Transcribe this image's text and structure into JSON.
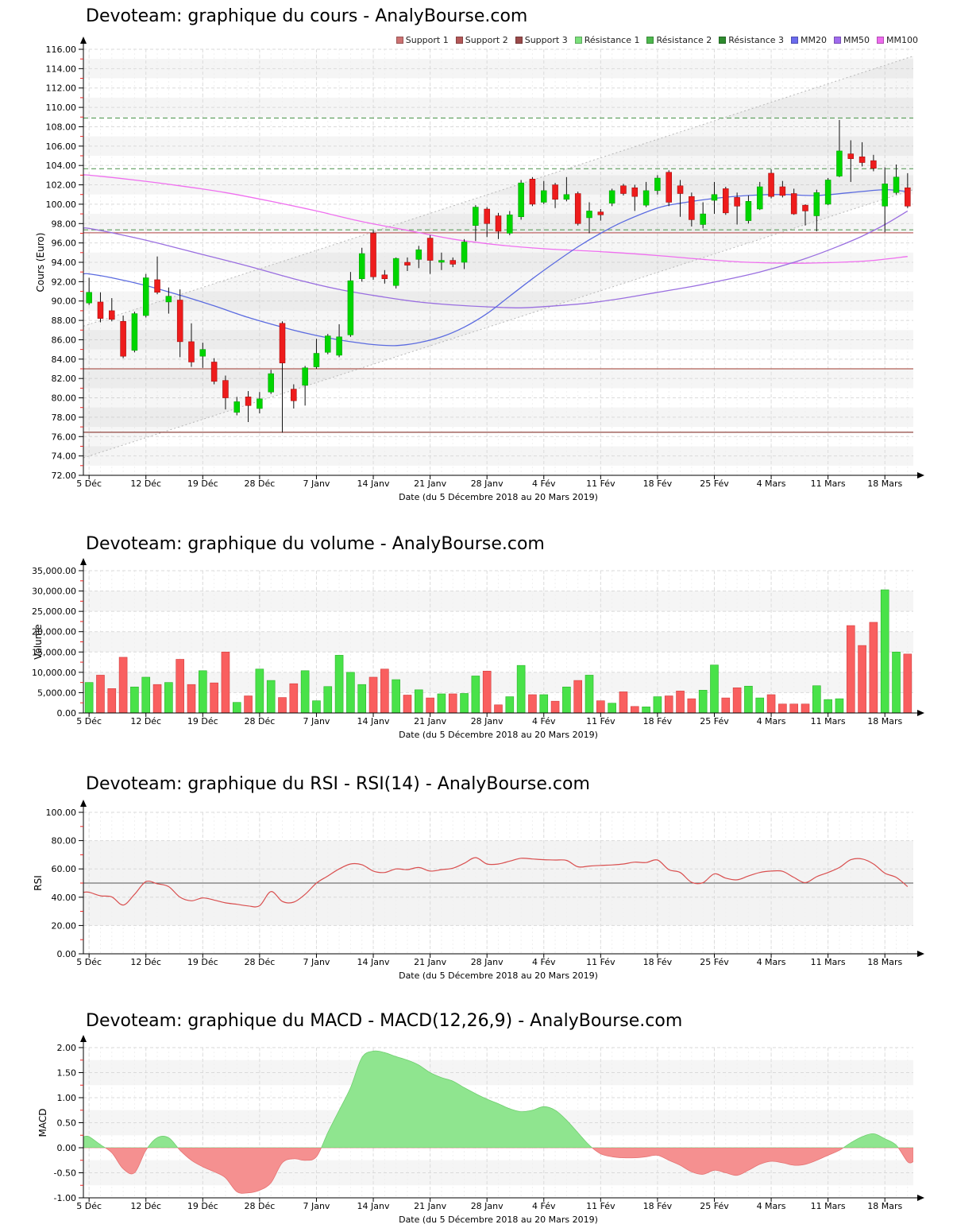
{
  "page": {
    "background": "#ffffff",
    "site": "AnalyBourse.com",
    "instrument": "Devoteam"
  },
  "x_axis": {
    "title": "Date (du 5 Décembre 2018 au 20 Mars 2019)",
    "tick_labels": [
      "5 Déc",
      "12 Déc",
      "19 Déc",
      "28 Déc",
      "7 Janv",
      "14 Janv",
      "21 Janv",
      "28 Janv",
      "4 Fév",
      "11 Fév",
      "18 Fév",
      "25 Fév",
      "4 Mars",
      "11 Mars",
      "18 Mars"
    ],
    "tick_indices": [
      0,
      5,
      10,
      15,
      20,
      25,
      30,
      35,
      40,
      45,
      50,
      55,
      60,
      65,
      70
    ],
    "dates": [
      "5 Déc",
      "6 Déc",
      "7 Déc",
      "10 Déc",
      "11 Déc",
      "12 Déc",
      "13 Déc",
      "14 Déc",
      "17 Déc",
      "18 Déc",
      "19 Déc",
      "20 Déc",
      "21 Déc",
      "24 Déc",
      "27 Déc",
      "28 Déc",
      "31 Déc",
      "2 Janv",
      "3 Janv",
      "4 Janv",
      "7 Janv",
      "8 Janv",
      "9 Janv",
      "10 Janv",
      "11 Janv",
      "14 Janv",
      "15 Janv",
      "16 Janv",
      "17 Janv",
      "18 Janv",
      "21 Janv",
      "22 Janv",
      "23 Janv",
      "24 Janv",
      "25 Janv",
      "28 Janv",
      "29 Janv",
      "30 Janv",
      "31 Janv",
      "1 Fév",
      "4 Fév",
      "5 Fév",
      "6 Fév",
      "7 Fév",
      "8 Fév",
      "11 Fév",
      "12 Fév",
      "13 Fév",
      "14 Fév",
      "15 Fév",
      "18 Fév",
      "19 Fév",
      "20 Fév",
      "21 Fév",
      "22 Fév",
      "25 Fév",
      "26 Fév",
      "27 Fév",
      "28 Fév",
      "1 Mars",
      "4 Mars",
      "5 Mars",
      "6 Mars",
      "7 Mars",
      "8 Mars",
      "11 Mars",
      "12 Mars",
      "13 Mars",
      "14 Mars",
      "15 Mars",
      "18 Mars",
      "19 Mars",
      "20 Mars"
    ]
  },
  "chart_data": [
    {
      "id": "price",
      "type": "candlestick",
      "title": "Devoteam: graphique du cours - AnalyBourse.com",
      "ylabel": "Cours (Euro)",
      "ylim": [
        72,
        116
      ],
      "ystep": 2,
      "yminor": 1,
      "y_tick_labels": [
        "116.00",
        "114.00",
        "112.00",
        "110.00",
        "108.00",
        "106.00",
        "104.00",
        "102.00",
        "100.00",
        "98.00",
        "96.00",
        "94.00",
        "92.00",
        "90.00",
        "88.00",
        "86.00",
        "84.00",
        "82.00",
        "80.00",
        "78.00",
        "76.00",
        "74.00",
        "72.00"
      ],
      "legend": [
        {
          "label": "Support 1",
          "color": "#cc7272"
        },
        {
          "label": "Support 2",
          "color": "#b45858"
        },
        {
          "label": "Support 3",
          "color": "#9a4a4a"
        },
        {
          "label": "Résistance 1",
          "color": "#7be07b"
        },
        {
          "label": "Résistance 2",
          "color": "#4db84d"
        },
        {
          "label": "Résistance 3",
          "color": "#2e8b2e"
        },
        {
          "label": "MM20",
          "color": "#6b6bee"
        },
        {
          "label": "MM50",
          "color": "#a06bee"
        },
        {
          "label": "MM100",
          "color": "#ee6bee"
        }
      ],
      "supports": [
        {
          "label": "Support 1",
          "value": 97.05,
          "color": "#c06868"
        },
        {
          "label": "Support 2",
          "value": 83.0,
          "color": "#b06058"
        },
        {
          "label": "Support 3",
          "value": 76.45,
          "color": "#9a5650"
        }
      ],
      "resistances": [
        {
          "label": "Résistance 1",
          "value": 97.35,
          "color": "#5f9f5f"
        },
        {
          "label": "Résistance 2",
          "value": 103.66,
          "color": "#5f9f5f"
        },
        {
          "label": "Résistance 3",
          "value": 108.9,
          "color": "#5f9f5f"
        }
      ],
      "channel": {
        "upper": [
          87.4,
          115.3
        ],
        "lower": [
          73.8,
          101.5
        ],
        "line_color": "#b8b8b8",
        "fill": "rgba(140,140,140,0.08)"
      },
      "mm20": {
        "label": "MM20",
        "color": "#5b6be0",
        "points": [
          [
            0,
            92.8
          ],
          [
            2,
            92.4
          ],
          [
            5,
            91.6
          ],
          [
            8,
            90.6
          ],
          [
            11,
            89.5
          ],
          [
            14,
            88.3
          ],
          [
            17,
            87.3
          ],
          [
            19,
            86.7
          ],
          [
            21,
            86.2
          ],
          [
            23,
            85.8
          ],
          [
            25,
            85.5
          ],
          [
            27,
            85.4
          ],
          [
            29,
            85.7
          ],
          [
            31,
            86.3
          ],
          [
            33,
            87.3
          ],
          [
            35,
            88.7
          ],
          [
            37,
            90.5
          ],
          [
            39,
            92.3
          ],
          [
            41,
            94.0
          ],
          [
            43,
            95.6
          ],
          [
            45,
            97.0
          ],
          [
            47,
            98.2
          ],
          [
            50,
            99.6
          ],
          [
            52,
            100.1
          ],
          [
            55,
            100.6
          ],
          [
            58,
            100.9
          ],
          [
            61,
            101.0
          ],
          [
            64,
            100.9
          ],
          [
            67,
            101.2
          ],
          [
            70,
            101.5
          ],
          [
            72,
            101.3
          ]
        ]
      },
      "mm50": {
        "label": "MM50",
        "color": "#9a6fe0",
        "points": [
          [
            0,
            97.5
          ],
          [
            3,
            96.8
          ],
          [
            6,
            96.0
          ],
          [
            10,
            94.8
          ],
          [
            14,
            93.6
          ],
          [
            18,
            92.3
          ],
          [
            22,
            91.2
          ],
          [
            26,
            90.4
          ],
          [
            29,
            89.9
          ],
          [
            32,
            89.6
          ],
          [
            35,
            89.4
          ],
          [
            38,
            89.3
          ],
          [
            41,
            89.5
          ],
          [
            44,
            89.8
          ],
          [
            47,
            90.3
          ],
          [
            50,
            90.9
          ],
          [
            53,
            91.5
          ],
          [
            56,
            92.2
          ],
          [
            59,
            93.0
          ],
          [
            62,
            94.0
          ],
          [
            64,
            94.8
          ],
          [
            66,
            95.7
          ],
          [
            68,
            96.7
          ],
          [
            70,
            97.9
          ],
          [
            72,
            99.3
          ]
        ]
      },
      "mm100": {
        "label": "MM100",
        "color": "#ef6fef",
        "points": [
          [
            0,
            103.0
          ],
          [
            4,
            102.5
          ],
          [
            8,
            101.9
          ],
          [
            12,
            101.2
          ],
          [
            16,
            100.3
          ],
          [
            20,
            99.3
          ],
          [
            24,
            98.2
          ],
          [
            28,
            97.3
          ],
          [
            32,
            96.4
          ],
          [
            36,
            95.8
          ],
          [
            40,
            95.4
          ],
          [
            45,
            95.1
          ],
          [
            50,
            94.7
          ],
          [
            54,
            94.3
          ],
          [
            58,
            94.0
          ],
          [
            62,
            93.9
          ],
          [
            66,
            94.0
          ],
          [
            69,
            94.2
          ],
          [
            72,
            94.6
          ]
        ]
      },
      "up_color": "#00d500",
      "down_color": "#ee1c1c",
      "wick_color": "#111111",
      "candles": [
        [
          89.8,
          92.4,
          89.6,
          90.9
        ],
        [
          89.9,
          90.9,
          87.8,
          88.2
        ],
        [
          89.0,
          90.3,
          87.9,
          88.1
        ],
        [
          87.9,
          88.5,
          84.1,
          84.3
        ],
        [
          84.9,
          88.9,
          84.7,
          88.7
        ],
        [
          88.5,
          92.8,
          88.3,
          92.4
        ],
        [
          92.2,
          94.6,
          90.7,
          90.9
        ],
        [
          89.9,
          91.4,
          88.7,
          90.5
        ],
        [
          90.1,
          91.2,
          84.2,
          85.8
        ],
        [
          85.8,
          87.7,
          83.2,
          83.7
        ],
        [
          84.3,
          85.7,
          83.1,
          85.0
        ],
        [
          83.7,
          84.1,
          81.4,
          81.7
        ],
        [
          81.8,
          82.3,
          78.8,
          80.0
        ],
        [
          78.5,
          80.1,
          78.2,
          79.6
        ],
        [
          80.1,
          80.7,
          77.5,
          79.2
        ],
        [
          78.9,
          80.6,
          78.4,
          79.9
        ],
        [
          80.6,
          82.9,
          80.4,
          82.5
        ],
        [
          87.7,
          87.9,
          76.4,
          83.6
        ],
        [
          80.9,
          81.4,
          78.9,
          79.7
        ],
        [
          81.3,
          83.3,
          79.2,
          83.1
        ],
        [
          83.2,
          86.1,
          83.0,
          84.6
        ],
        [
          84.7,
          86.6,
          84.5,
          86.4
        ],
        [
          84.4,
          87.6,
          84.2,
          86.3
        ],
        [
          86.5,
          93.0,
          86.3,
          92.1
        ],
        [
          92.3,
          95.5,
          92.0,
          94.9
        ],
        [
          97.0,
          97.3,
          92.2,
          92.5
        ],
        [
          92.7,
          93.2,
          91.8,
          92.3
        ],
        [
          91.6,
          94.5,
          91.3,
          94.4
        ],
        [
          94.0,
          94.5,
          93.1,
          93.7
        ],
        [
          94.3,
          95.7,
          93.4,
          95.3
        ],
        [
          96.5,
          96.8,
          92.8,
          94.2
        ],
        [
          94.0,
          95.0,
          93.2,
          94.2
        ],
        [
          94.2,
          94.5,
          93.5,
          93.8
        ],
        [
          94.0,
          96.4,
          93.3,
          96.1
        ],
        [
          97.8,
          99.9,
          96.2,
          99.7
        ],
        [
          99.5,
          99.7,
          96.6,
          98.0
        ],
        [
          98.8,
          99.1,
          96.4,
          97.2
        ],
        [
          97.0,
          99.3,
          96.8,
          98.9
        ],
        [
          98.7,
          102.5,
          98.4,
          102.2
        ],
        [
          102.6,
          102.8,
          99.8,
          100.0
        ],
        [
          100.2,
          102.4,
          100.0,
          101.4
        ],
        [
          102.0,
          102.2,
          99.6,
          100.5
        ],
        [
          100.5,
          102.8,
          100.3,
          101.0
        ],
        [
          101.1,
          101.3,
          97.8,
          98.0
        ],
        [
          98.6,
          100.2,
          97.0,
          99.3
        ],
        [
          99.2,
          99.5,
          98.3,
          98.9
        ],
        [
          100.1,
          101.6,
          99.8,
          101.4
        ],
        [
          101.9,
          102.1,
          100.9,
          101.1
        ],
        [
          101.7,
          102.0,
          99.3,
          100.8
        ],
        [
          99.9,
          102.3,
          99.7,
          101.4
        ],
        [
          101.4,
          103.0,
          101.0,
          102.7
        ],
        [
          103.3,
          103.5,
          99.8,
          100.2
        ],
        [
          101.9,
          102.5,
          98.7,
          101.1
        ],
        [
          100.8,
          101.2,
          97.7,
          98.4
        ],
        [
          97.9,
          100.2,
          97.5,
          99.0
        ],
        [
          100.4,
          102.3,
          99.0,
          101.0
        ],
        [
          101.6,
          101.8,
          98.9,
          99.1
        ],
        [
          100.7,
          101.2,
          97.9,
          99.8
        ],
        [
          98.3,
          100.9,
          98.0,
          100.3
        ],
        [
          99.5,
          102.3,
          99.4,
          101.8
        ],
        [
          103.2,
          103.6,
          100.6,
          100.8
        ],
        [
          101.8,
          102.4,
          100.7,
          100.9
        ],
        [
          101.1,
          101.6,
          98.9,
          99.0
        ],
        [
          99.9,
          100.0,
          97.8,
          99.3
        ],
        [
          98.8,
          101.5,
          97.2,
          101.2
        ],
        [
          100.0,
          102.7,
          99.9,
          102.5
        ],
        [
          102.9,
          108.7,
          102.8,
          105.5
        ],
        [
          105.2,
          106.6,
          102.3,
          104.7
        ],
        [
          104.9,
          106.4,
          103.9,
          104.3
        ],
        [
          104.5,
          105.1,
          103.4,
          103.7
        ],
        [
          99.8,
          103.8,
          97.1,
          102.1
        ],
        [
          101.2,
          104.1,
          101.0,
          102.8
        ],
        [
          101.7,
          103.2,
          99.6,
          99.8
        ]
      ]
    },
    {
      "id": "volume",
      "type": "bar",
      "title": "Devoteam: graphique du volume - AnalyBourse.com",
      "ylabel": "Volume",
      "ylim": [
        0,
        35000
      ],
      "ystep": 5000,
      "yminor": 2500,
      "y_tick_labels": [
        "35,000.00",
        "30,000.00",
        "25,000.00",
        "20,000.00",
        "15,000.00",
        "10,000.00",
        "5,000.00",
        "0.00"
      ],
      "up_color": "#49e249",
      "down_color": "#f95f5f",
      "values": [
        7500,
        9300,
        6000,
        13700,
        6400,
        8800,
        7000,
        7500,
        13200,
        7000,
        10400,
        7400,
        15000,
        2600,
        4200,
        10800,
        8000,
        3800,
        7200,
        10400,
        3000,
        6500,
        14200,
        10000,
        7000,
        8800,
        10800,
        8200,
        4400,
        5700,
        3700,
        4700,
        4700,
        4800,
        9100,
        10300,
        2000,
        4000,
        11700,
        4500,
        4500,
        2900,
        6400,
        8000,
        9300,
        3000,
        2400,
        5200,
        1600,
        1500,
        4000,
        4200,
        5400,
        3500,
        5600,
        11800,
        3700,
        6200,
        6600,
        3700,
        4500,
        2200,
        2200,
        2200,
        6700,
        3300,
        3500,
        21500,
        16600,
        22300,
        30300,
        15000,
        14500
      ]
    },
    {
      "id": "rsi",
      "type": "line",
      "title": "Devoteam: graphique du RSI - RSI(14) - AnalyBourse.com",
      "ylabel": "RSI",
      "ylim": [
        0,
        100
      ],
      "ystep": 20,
      "yminor": 10,
      "y_tick_labels": [
        "100.00",
        "80.00",
        "60.00",
        "40.00",
        "20.00",
        "0.00"
      ],
      "band": [
        20,
        80
      ],
      "midline": 50,
      "line_color": "#d94f4f",
      "values": [
        43.5,
        41.0,
        40.2,
        34.5,
        42.0,
        51.0,
        49.5,
        47.5,
        40.0,
        37.5,
        39.5,
        38.0,
        36.0,
        35.0,
        33.8,
        34.0,
        44.0,
        37.0,
        36.5,
        42.0,
        50.0,
        55.0,
        60.0,
        63.5,
        63.0,
        58.5,
        57.5,
        60.0,
        59.5,
        61.0,
        58.5,
        59.5,
        60.5,
        64.0,
        68.0,
        63.5,
        63.5,
        65.5,
        67.5,
        67.0,
        66.5,
        66.3,
        66.0,
        61.5,
        62.0,
        62.5,
        62.8,
        63.5,
        64.8,
        64.5,
        66.3,
        59.5,
        57.5,
        50.5,
        50.3,
        56.5,
        53.5,
        52.3,
        55.0,
        57.5,
        58.5,
        58.3,
        54.0,
        50.3,
        54.5,
        57.5,
        61.0,
        66.5,
        67.0,
        63.5,
        57.0,
        54.0,
        47.5
      ]
    },
    {
      "id": "macd",
      "type": "area",
      "title": "Devoteam: graphique du MACD - MACD(12,26,9) - AnalyBourse.com",
      "ylabel": "MACD",
      "ylim": [
        -1,
        2
      ],
      "ystep": 0.5,
      "yminor": 0.25,
      "y_tick_labels": [
        "2.00",
        "1.50",
        "1.00",
        "0.50",
        "0.00",
        "-0.50",
        "-1.00"
      ],
      "pos_color": "#8fe58f",
      "neg_color": "#f59090",
      "values": [
        0.22,
        0.06,
        -0.1,
        -0.42,
        -0.5,
        -0.05,
        0.2,
        0.2,
        -0.05,
        -0.25,
        -0.38,
        -0.48,
        -0.6,
        -0.88,
        -0.9,
        -0.85,
        -0.7,
        -0.3,
        -0.22,
        -0.25,
        -0.18,
        0.3,
        0.75,
        1.2,
        1.8,
        1.93,
        1.9,
        1.82,
        1.75,
        1.65,
        1.5,
        1.4,
        1.33,
        1.2,
        1.08,
        0.97,
        0.88,
        0.78,
        0.72,
        0.75,
        0.82,
        0.75,
        0.55,
        0.3,
        0.05,
        -0.12,
        -0.18,
        -0.2,
        -0.2,
        -0.18,
        -0.15,
        -0.25,
        -0.35,
        -0.48,
        -0.53,
        -0.45,
        -0.5,
        -0.55,
        -0.45,
        -0.33,
        -0.27,
        -0.3,
        -0.35,
        -0.33,
        -0.25,
        -0.15,
        -0.05,
        0.1,
        0.22,
        0.28,
        0.18,
        0.05,
        -0.28
      ]
    }
  ]
}
